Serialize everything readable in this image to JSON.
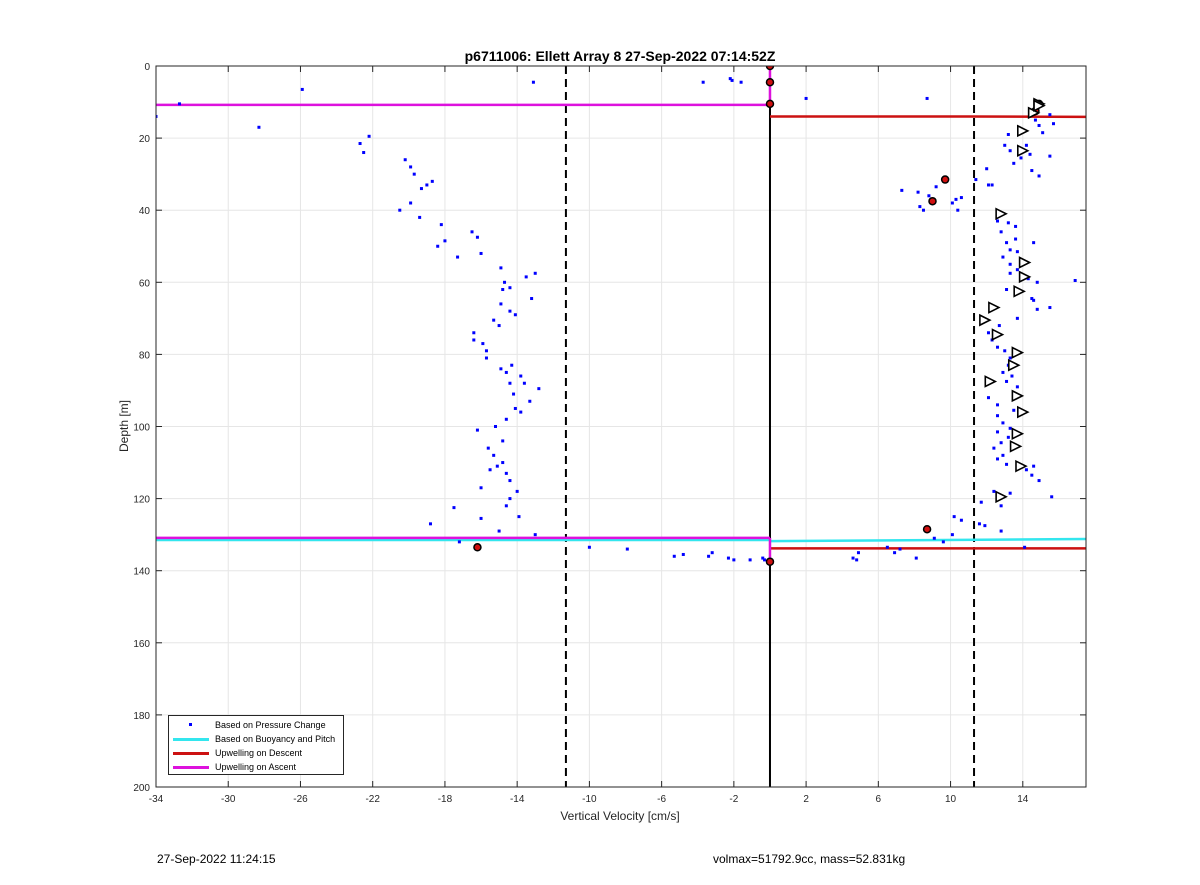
{
  "chart_data": {
    "type": "scatter",
    "title": "p6711006: Ellett Array 8 27-Sep-2022 07:14:52Z",
    "xlabel": "Vertical Velocity [cm/s]",
    "ylabel": "Depth [m]",
    "xlim": [
      -34,
      17.5
    ],
    "ylim": [
      0,
      200
    ],
    "y_reversed": true,
    "grid": true,
    "xticks": [
      -34,
      -30,
      -26,
      -22,
      -18,
      -14,
      -10,
      -6,
      -2,
      2,
      6,
      10,
      14
    ],
    "xtick_labels": [
      "-34",
      "-30",
      "-26",
      "-22",
      "-18",
      "-14",
      "-10",
      "-6",
      "-2",
      "2",
      "6",
      "10",
      "14"
    ],
    "yticks": [
      0,
      20,
      40,
      60,
      80,
      100,
      120,
      140,
      160,
      180,
      200
    ],
    "ytick_labels": [
      "0",
      "20",
      "40",
      "60",
      "80",
      "100",
      "120",
      "140",
      "160",
      "180",
      "200"
    ],
    "legend_location": "bottom-left",
    "legend": [
      {
        "label": "Based on Pressure Change",
        "style": "dot",
        "color": "#0000ff"
      },
      {
        "label": "Based on Buoyancy and Pitch",
        "style": "line",
        "color": "#33e6ee"
      },
      {
        "label": "Upwelling on Descent",
        "style": "line",
        "color": "#cc1111"
      },
      {
        "label": "Upwelling on Ascent",
        "style": "line",
        "color": "#dd11dd"
      }
    ],
    "reference_lines": {
      "solid_x": 0,
      "dashed_x": [
        -11.3,
        11.3
      ]
    },
    "series": [
      {
        "name": "Based on Pressure Change",
        "kind": "scatter",
        "color": "#0000ff",
        "points": [
          [
            -34,
            14
          ],
          [
            -32.7,
            10.5
          ],
          [
            -28.3,
            17
          ],
          [
            -25.9,
            6.5
          ],
          [
            -22.7,
            21.5
          ],
          [
            -22.5,
            24
          ],
          [
            -22.2,
            19.5
          ],
          [
            -20.2,
            26
          ],
          [
            -19.9,
            28
          ],
          [
            -19.7,
            30
          ],
          [
            -19.3,
            34
          ],
          [
            -19,
            33
          ],
          [
            -18.7,
            32
          ],
          [
            -19.9,
            38
          ],
          [
            -20.5,
            40
          ],
          [
            -19.4,
            42
          ],
          [
            -18.2,
            44
          ],
          [
            -18.4,
            50
          ],
          [
            -18,
            48.5
          ],
          [
            -17.3,
            53
          ],
          [
            -16.5,
            46
          ],
          [
            -16.2,
            47.5
          ],
          [
            -16,
            52
          ],
          [
            -14.9,
            56
          ],
          [
            -14.7,
            60
          ],
          [
            -14.8,
            62
          ],
          [
            -14.4,
            61.5
          ],
          [
            -13.5,
            58.5
          ],
          [
            -13,
            57.5
          ],
          [
            -13.2,
            64.5
          ],
          [
            -14.9,
            66
          ],
          [
            -14.4,
            68
          ],
          [
            -14.1,
            69
          ],
          [
            -15.3,
            70.5
          ],
          [
            -15,
            72
          ],
          [
            -16.4,
            74
          ],
          [
            -16.4,
            76
          ],
          [
            -15.9,
            77
          ],
          [
            -15.7,
            79
          ],
          [
            -15.7,
            81
          ],
          [
            -14.9,
            84
          ],
          [
            -14.3,
            83
          ],
          [
            -14.6,
            85
          ],
          [
            -14.4,
            88
          ],
          [
            -13.8,
            86
          ],
          [
            -13.6,
            88
          ],
          [
            -12.8,
            89.5
          ],
          [
            -14.2,
            91
          ],
          [
            -13.3,
            93
          ],
          [
            -14.1,
            95
          ],
          [
            -13.8,
            96
          ],
          [
            -14.6,
            98
          ],
          [
            -16.2,
            101
          ],
          [
            -15.2,
            100
          ],
          [
            -14.8,
            104
          ],
          [
            -15.6,
            106
          ],
          [
            -15.3,
            108
          ],
          [
            -15.1,
            111
          ],
          [
            -14.8,
            110
          ],
          [
            -14.6,
            113
          ],
          [
            -14.4,
            115
          ],
          [
            -15.5,
            112
          ],
          [
            -14,
            118
          ],
          [
            -14.4,
            120
          ],
          [
            -16,
            117
          ],
          [
            -16,
            125.5
          ],
          [
            -14.6,
            122
          ],
          [
            -13.9,
            125
          ],
          [
            -15,
            129
          ],
          [
            -17.5,
            122.5
          ],
          [
            -18.8,
            127
          ],
          [
            -13,
            130
          ],
          [
            -17.2,
            132
          ],
          [
            -13.1,
            4.5
          ],
          [
            -3.7,
            4.5
          ],
          [
            -2.1,
            4
          ],
          [
            -1.6,
            4.5
          ],
          [
            -2.2,
            3.5
          ],
          [
            2,
            9
          ],
          [
            8.7,
            9
          ],
          [
            -10,
            133.5
          ],
          [
            -7.9,
            134
          ],
          [
            -5.3,
            136
          ],
          [
            -4.8,
            135.5
          ],
          [
            -3.4,
            136
          ],
          [
            -3.2,
            135
          ],
          [
            -2.3,
            136.5
          ],
          [
            -2,
            137
          ],
          [
            -1.1,
            137
          ],
          [
            -0.4,
            136.5
          ],
          [
            -0.1,
            137.5
          ],
          [
            -0.3,
            137
          ],
          [
            4.6,
            136.5
          ],
          [
            4.8,
            137
          ],
          [
            4.9,
            135
          ],
          [
            6.5,
            133.5
          ],
          [
            6.9,
            135
          ],
          [
            7.2,
            134
          ],
          [
            8.1,
            136.5
          ],
          [
            10.6,
            126
          ],
          [
            7.3,
            34.5
          ],
          [
            8.2,
            35
          ],
          [
            8.3,
            39
          ],
          [
            8.5,
            40
          ],
          [
            9.2,
            33.5
          ],
          [
            8.8,
            36
          ],
          [
            9.7,
            31.5
          ],
          [
            10.3,
            37
          ],
          [
            10.6,
            36.5
          ],
          [
            10.1,
            38
          ],
          [
            10.4,
            40
          ],
          [
            11.4,
            31.5
          ],
          [
            12.1,
            33
          ],
          [
            12,
            28.5
          ],
          [
            12.3,
            33
          ],
          [
            13,
            22
          ],
          [
            13.3,
            23.5
          ],
          [
            13.2,
            19
          ],
          [
            13.5,
            27
          ],
          [
            13.9,
            25.5
          ],
          [
            14.2,
            22
          ],
          [
            14.4,
            24.5
          ],
          [
            14.5,
            29
          ],
          [
            14.7,
            15
          ],
          [
            14.9,
            16.5
          ],
          [
            15.1,
            18.5
          ],
          [
            15.5,
            13.5
          ],
          [
            15.7,
            16
          ],
          [
            15.5,
            25
          ],
          [
            14.9,
            30.5
          ],
          [
            12.6,
            43
          ],
          [
            13.2,
            43.5
          ],
          [
            13.6,
            44.5
          ],
          [
            12.8,
            46
          ],
          [
            13.1,
            49
          ],
          [
            13.6,
            48
          ],
          [
            13.3,
            51
          ],
          [
            13.7,
            51.5
          ],
          [
            14.6,
            49
          ],
          [
            12.9,
            53
          ],
          [
            13.3,
            55
          ],
          [
            13.7,
            56.5
          ],
          [
            13.3,
            57.5
          ],
          [
            14.3,
            59
          ],
          [
            14.6,
            65
          ],
          [
            14.8,
            60
          ],
          [
            15.5,
            67
          ],
          [
            14.8,
            67.5
          ],
          [
            14.5,
            64.5
          ],
          [
            13.7,
            70
          ],
          [
            12.7,
            72
          ],
          [
            11.7,
            71
          ],
          [
            12.1,
            74
          ],
          [
            12.3,
            76
          ],
          [
            12.6,
            78
          ],
          [
            13,
            79
          ],
          [
            13.3,
            81
          ],
          [
            13.2,
            83
          ],
          [
            12.9,
            85
          ],
          [
            13.4,
            86
          ],
          [
            13.1,
            87.5
          ],
          [
            13.7,
            89
          ],
          [
            12.1,
            92
          ],
          [
            12.6,
            94
          ],
          [
            13.5,
            95.5
          ],
          [
            12.6,
            97
          ],
          [
            12.9,
            99
          ],
          [
            13.3,
            100.5
          ],
          [
            12.6,
            101.5
          ],
          [
            13.2,
            103
          ],
          [
            12.8,
            104.5
          ],
          [
            12.4,
            106
          ],
          [
            12.9,
            108
          ],
          [
            12.6,
            109
          ],
          [
            13.1,
            110.5
          ],
          [
            14.2,
            112
          ],
          [
            14.5,
            113.5
          ],
          [
            14.6,
            111
          ],
          [
            14.9,
            115
          ],
          [
            15.6,
            119.5
          ],
          [
            12.4,
            118
          ],
          [
            13.3,
            118.5
          ],
          [
            12.8,
            122
          ],
          [
            11.7,
            121
          ],
          [
            11.9,
            127.5
          ],
          [
            11.6,
            127
          ],
          [
            12.8,
            129
          ],
          [
            10.2,
            125
          ],
          [
            10.1,
            130
          ],
          [
            9.1,
            131
          ],
          [
            9.6,
            132
          ],
          [
            14.1,
            133.5
          ],
          [
            16.9,
            59.5
          ],
          [
            13.1,
            62
          ]
        ]
      },
      {
        "name": "Based on Buoyancy and Pitch",
        "kind": "profile",
        "color": "#33e6ee",
        "width": 2.5,
        "segments": [
          [
            [
              -34,
              131.5
            ],
            [
              0,
              131.5
            ]
          ],
          [
            [
              0,
              131.8
            ],
            [
              17.5,
              131.2
            ]
          ]
        ]
      },
      {
        "name": "Upwelling on Descent",
        "kind": "profile",
        "color": "#cc1111",
        "width": 2.5,
        "segments": [
          [
            [
              0,
              14
            ],
            [
              11,
              14
            ],
            [
              17.5,
              14.1
            ]
          ],
          [
            [
              0,
              133.8
            ],
            [
              17.5,
              133.8
            ]
          ]
        ]
      },
      {
        "name": "Upwelling on Ascent",
        "kind": "profile",
        "color": "#dd11dd",
        "width": 2.5,
        "segments": [
          [
            [
              -34,
              10.8
            ],
            [
              0,
              10.8
            ]
          ],
          [
            [
              -34,
              130.9
            ],
            [
              0,
              130.9
            ]
          ],
          [
            [
              0,
              0
            ],
            [
              0,
              11
            ]
          ],
          [
            [
              0,
              130.9
            ],
            [
              0,
              137.5
            ]
          ]
        ]
      }
    ],
    "markers": {
      "circles": [
        [
          0,
          0
        ],
        [
          0,
          4.5
        ],
        [
          0,
          10.5
        ],
        [
          14.9,
          10.5
        ],
        [
          14.7,
          12.5
        ],
        [
          9.7,
          31.5
        ],
        [
          9,
          37.5
        ],
        [
          8.7,
          128.5
        ],
        [
          -16.2,
          133.5
        ],
        [
          0,
          137.5
        ]
      ],
      "triangles": [
        [
          14.9,
          10.5
        ],
        [
          14.6,
          13
        ],
        [
          14,
          18
        ],
        [
          14,
          23.5
        ],
        [
          12.8,
          41
        ],
        [
          14.1,
          54.5
        ],
        [
          14.1,
          58.5
        ],
        [
          13.8,
          62.5
        ],
        [
          12.4,
          67
        ],
        [
          11.9,
          70.5
        ],
        [
          12.6,
          74.5
        ],
        [
          13.7,
          79.5
        ],
        [
          13.5,
          83
        ],
        [
          12.2,
          87.5
        ],
        [
          13.7,
          91.5
        ],
        [
          14,
          96
        ],
        [
          13.7,
          102
        ],
        [
          13.6,
          105.5
        ],
        [
          13.9,
          111
        ],
        [
          12.8,
          119.5
        ],
        [
          14.9,
          11
        ]
      ]
    }
  },
  "footer": {
    "left": "27-Sep-2022 11:24:15",
    "right": "volmax=51792.9cc, mass=52.831kg"
  }
}
